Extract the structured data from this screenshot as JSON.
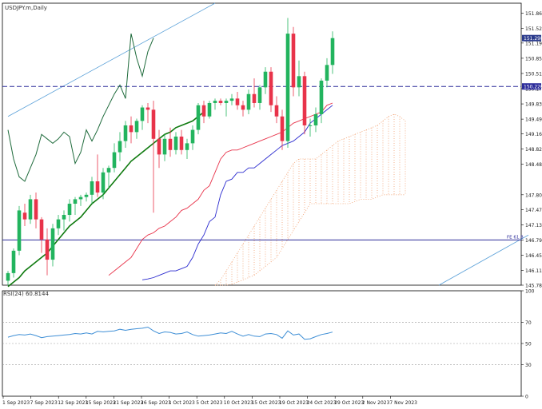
{
  "chart_data": [
    {
      "type": "candlestick",
      "title": "USDJPY.m,Daily",
      "ylim": [
        145.78,
        152.08
      ],
      "y_ticks": [
        "151.860",
        "151.520",
        "151.190",
        "150.850",
        "150.510",
        "150.170",
        "149.830",
        "149.490",
        "149.160",
        "148.820",
        "148.480",
        "147.800",
        "147.470",
        "147.130",
        "146.790",
        "146.450",
        "146.110",
        "145.780"
      ],
      "x_labels": [
        "1 Sep 2023",
        "7 Sep 2023",
        "12 Sep 2023",
        "15 Sep 2023",
        "21 Sep 2023",
        "26 Sep 2023",
        "1 Oct 2023",
        "5 Oct 2023",
        "10 Oct 2023",
        "15 Oct 2023",
        "19 Oct 2023",
        "24 Oct 2023",
        "29 Oct 2023",
        "2 Nov 2023",
        "7 Nov 2023"
      ],
      "candles": [
        {
          "o": 145.88,
          "h": 146.1,
          "l": 145.78,
          "c": 146.05
        },
        {
          "o": 146.05,
          "h": 146.6,
          "l": 145.95,
          "c": 146.55
        },
        {
          "o": 146.55,
          "h": 147.55,
          "l": 146.45,
          "c": 147.45
        },
        {
          "o": 147.4,
          "h": 147.6,
          "l": 147.1,
          "c": 147.25
        },
        {
          "o": 147.25,
          "h": 147.8,
          "l": 147.15,
          "c": 147.7
        },
        {
          "o": 147.7,
          "h": 147.85,
          "l": 147.05,
          "c": 147.25
        },
        {
          "o": 147.25,
          "h": 147.3,
          "l": 146.5,
          "c": 146.8
        },
        {
          "o": 146.8,
          "h": 147.05,
          "l": 146.0,
          "c": 146.35
        },
        {
          "o": 146.35,
          "h": 147.15,
          "l": 146.2,
          "c": 147.05
        },
        {
          "o": 147.05,
          "h": 147.35,
          "l": 146.9,
          "c": 147.25
        },
        {
          "o": 147.25,
          "h": 147.45,
          "l": 147.0,
          "c": 147.35
        },
        {
          "o": 147.35,
          "h": 147.7,
          "l": 147.2,
          "c": 147.6
        },
        {
          "o": 147.6,
          "h": 147.75,
          "l": 147.35,
          "c": 147.7
        },
        {
          "o": 147.7,
          "h": 147.8,
          "l": 147.55,
          "c": 147.75
        },
        {
          "o": 147.75,
          "h": 147.85,
          "l": 147.65,
          "c": 147.8
        },
        {
          "o": 147.8,
          "h": 148.2,
          "l": 147.6,
          "c": 148.1
        },
        {
          "o": 148.1,
          "h": 148.7,
          "l": 147.75,
          "c": 147.85
        },
        {
          "o": 147.85,
          "h": 148.4,
          "l": 147.7,
          "c": 148.3
        },
        {
          "o": 148.3,
          "h": 148.45,
          "l": 147.95,
          "c": 148.4
        },
        {
          "o": 148.4,
          "h": 148.95,
          "l": 148.3,
          "c": 148.75
        },
        {
          "o": 148.75,
          "h": 149.2,
          "l": 148.55,
          "c": 149.0
        },
        {
          "o": 149.0,
          "h": 149.45,
          "l": 148.85,
          "c": 149.35
        },
        {
          "o": 149.35,
          "h": 149.55,
          "l": 148.95,
          "c": 149.2
        },
        {
          "o": 149.2,
          "h": 149.5,
          "l": 149.05,
          "c": 149.45
        },
        {
          "o": 149.45,
          "h": 149.8,
          "l": 149.25,
          "c": 149.75
        },
        {
          "o": 149.75,
          "h": 149.85,
          "l": 149.4,
          "c": 149.7
        },
        {
          "o": 149.7,
          "h": 149.9,
          "l": 147.4,
          "c": 149.05
        },
        {
          "o": 149.05,
          "h": 149.25,
          "l": 148.4,
          "c": 148.7
        },
        {
          "o": 148.7,
          "h": 149.15,
          "l": 148.55,
          "c": 149.05
        },
        {
          "o": 149.05,
          "h": 149.3,
          "l": 148.65,
          "c": 148.8
        },
        {
          "o": 148.8,
          "h": 149.2,
          "l": 148.7,
          "c": 149.1
        },
        {
          "o": 149.1,
          "h": 149.25,
          "l": 148.7,
          "c": 148.8
        },
        {
          "o": 148.8,
          "h": 149.05,
          "l": 148.6,
          "c": 148.95
        },
        {
          "o": 148.95,
          "h": 149.35,
          "l": 148.8,
          "c": 149.25
        },
        {
          "o": 149.25,
          "h": 149.85,
          "l": 149.15,
          "c": 149.8
        },
        {
          "o": 149.8,
          "h": 149.9,
          "l": 149.4,
          "c": 149.55
        },
        {
          "o": 149.55,
          "h": 149.9,
          "l": 149.5,
          "c": 149.85
        },
        {
          "o": 149.85,
          "h": 149.95,
          "l": 149.7,
          "c": 149.9
        },
        {
          "o": 149.9,
          "h": 149.95,
          "l": 149.8,
          "c": 149.85
        },
        {
          "o": 149.85,
          "h": 149.95,
          "l": 149.55,
          "c": 149.9
        },
        {
          "o": 149.9,
          "h": 150.05,
          "l": 149.8,
          "c": 149.95
        },
        {
          "o": 149.95,
          "h": 150.1,
          "l": 149.7,
          "c": 149.8
        },
        {
          "o": 149.8,
          "h": 149.9,
          "l": 149.55,
          "c": 149.7
        },
        {
          "o": 149.7,
          "h": 150.15,
          "l": 149.6,
          "c": 150.05
        },
        {
          "o": 150.05,
          "h": 150.4,
          "l": 149.75,
          "c": 149.85
        },
        {
          "o": 149.85,
          "h": 150.25,
          "l": 149.7,
          "c": 150.2
        },
        {
          "o": 150.2,
          "h": 150.65,
          "l": 150.05,
          "c": 150.55
        },
        {
          "o": 150.55,
          "h": 150.65,
          "l": 149.65,
          "c": 149.8
        },
        {
          "o": 149.8,
          "h": 150.0,
          "l": 149.4,
          "c": 149.55
        },
        {
          "o": 149.55,
          "h": 149.7,
          "l": 148.8,
          "c": 149.0
        },
        {
          "o": 149.0,
          "h": 151.75,
          "l": 148.85,
          "c": 151.4
        },
        {
          "o": 151.4,
          "h": 151.55,
          "l": 150.0,
          "c": 150.2
        },
        {
          "o": 150.2,
          "h": 150.8,
          "l": 150.0,
          "c": 150.45
        },
        {
          "o": 150.45,
          "h": 150.55,
          "l": 149.15,
          "c": 149.35
        },
        {
          "o": 149.35,
          "h": 149.5,
          "l": 149.1,
          "c": 149.35
        },
        {
          "o": 149.35,
          "h": 149.75,
          "l": 149.2,
          "c": 149.6
        },
        {
          "o": 149.6,
          "h": 150.4,
          "l": 149.4,
          "c": 150.35
        },
        {
          "o": 150.35,
          "h": 150.85,
          "l": 150.2,
          "c": 150.7
        },
        {
          "o": 150.7,
          "h": 151.45,
          "l": 150.5,
          "c": 151.3
        }
      ],
      "tenkan": [
        146.0,
        146.1,
        146.2,
        146.3,
        146.4,
        146.6,
        146.8,
        146.9,
        146.95,
        147.05,
        147.1,
        147.2,
        147.3,
        147.45,
        147.5,
        147.6,
        147.7,
        147.9,
        148.0,
        148.3,
        148.6,
        148.75,
        148.8,
        148.8,
        148.85,
        148.9,
        148.95,
        149.0,
        149.05,
        149.1,
        149.15,
        149.2,
        149.3,
        149.4,
        149.45,
        149.5,
        149.55,
        149.6,
        149.65,
        149.8,
        149.85
      ],
      "kijun": [
        145.9,
        145.92,
        145.95,
        146.0,
        146.05,
        146.1,
        146.1,
        146.15,
        146.2,
        146.4,
        146.7,
        146.9,
        147.2,
        147.3,
        147.8,
        148.1,
        148.15,
        148.3,
        148.3,
        148.4,
        148.4,
        148.5,
        148.6,
        148.7,
        148.8,
        148.9,
        148.95,
        149.0,
        149.1,
        149.2,
        149.4,
        149.5,
        149.6,
        149.7,
        149.8
      ],
      "ema": [
        145.75,
        145.85,
        145.95,
        146.1,
        146.2,
        146.3,
        146.4,
        146.5,
        146.65,
        146.8,
        146.95,
        147.1,
        147.2,
        147.3,
        147.45,
        147.6,
        147.7,
        147.8,
        147.95,
        148.1,
        148.25,
        148.4,
        148.55,
        148.65,
        148.75,
        148.85,
        148.95,
        149.05,
        149.15,
        149.2,
        149.3,
        149.35,
        149.4,
        149.45,
        149.55,
        149.65
      ],
      "chikou": [
        149.25,
        148.6,
        148.2,
        148.1,
        148.4,
        148.7,
        149.15,
        149.05,
        148.95,
        149.05,
        149.2,
        149.1,
        148.5,
        148.75,
        149.25,
        149.0,
        149.25,
        149.55,
        149.8,
        150.05,
        150.25,
        149.95,
        151.4,
        150.85,
        150.45,
        151.0,
        151.3
      ],
      "cloud_top": [
        145.78,
        145.9,
        146.1,
        146.3,
        146.5,
        146.7,
        146.9,
        147.1,
        147.3,
        147.5,
        147.7,
        147.9,
        148.1,
        148.3,
        148.5,
        148.6,
        148.6,
        148.6,
        148.6,
        148.7,
        148.8,
        148.9,
        149.0,
        149.05,
        149.1,
        149.15,
        149.2,
        149.25,
        149.3,
        149.35,
        149.45,
        149.55,
        149.6,
        149.55,
        149.45
      ],
      "cloud_bottom": [
        145.78,
        145.78,
        145.78,
        145.8,
        145.85,
        145.9,
        145.95,
        146.0,
        146.1,
        146.2,
        146.3,
        146.4,
        146.6,
        146.8,
        147.0,
        147.2,
        147.4,
        147.6,
        147.6,
        147.6,
        147.6,
        147.6,
        147.6,
        147.6,
        147.6,
        147.65,
        147.7,
        147.7,
        147.7,
        147.75,
        147.8,
        147.8,
        147.8,
        147.8,
        147.8
      ],
      "hlines": [
        {
          "value": 150.22,
          "label": "150.220"
        },
        {
          "value": 146.79,
          "label": "FE 61.8"
        }
      ],
      "trendlines": [
        {
          "from": [
            0,
            149.55
          ],
          "to": [
            37,
            152.08
          ]
        },
        {
          "from": [
            77,
            145.78
          ],
          "to": [
            93,
            146.9
          ]
        }
      ],
      "last_price_label": "151.298",
      "colors": {
        "up": "#22b45e",
        "down": "#e8334a",
        "tenkan": "#e8334a",
        "kijun": "#2b2bcf",
        "ema": "#0f7a0f",
        "chikou": "#1f6b3c",
        "cloud": "#f2a070",
        "hline": "#2b2b9a",
        "trend": "#5aa0d8",
        "rsi": "#3f8fd6",
        "price_label_bg": "#2a3a8c"
      }
    },
    {
      "type": "line",
      "title": "RSI(24) 60.8144",
      "ylim": [
        0,
        100
      ],
      "y_ticks": [
        "100",
        "70",
        "50",
        "30",
        "0"
      ],
      "levels": [
        70,
        50,
        30
      ],
      "series": [
        {
          "values": [
            56.0,
            57.5,
            58.5,
            58.0,
            59.0,
            57.5,
            55.5,
            56.5,
            57.0,
            57.5,
            58.0,
            58.5,
            59.5,
            59.0,
            60.0,
            59.0,
            61.5,
            61.0,
            61.5,
            62.0,
            63.5,
            62.5,
            63.5,
            64.0,
            64.5,
            65.5,
            62.0,
            59.5,
            61.0,
            60.5,
            59.0,
            59.5,
            61.0,
            58.5,
            57.0,
            57.5,
            58.0,
            59.0,
            60.0,
            59.5,
            61.5,
            59.0,
            57.0,
            58.5,
            57.0,
            56.5,
            59.0,
            59.5,
            58.5,
            55.0,
            62.0,
            58.0,
            59.0,
            54.0,
            54.5,
            56.5,
            58.5,
            59.5,
            60.8
          ]
        }
      ]
    }
  ]
}
